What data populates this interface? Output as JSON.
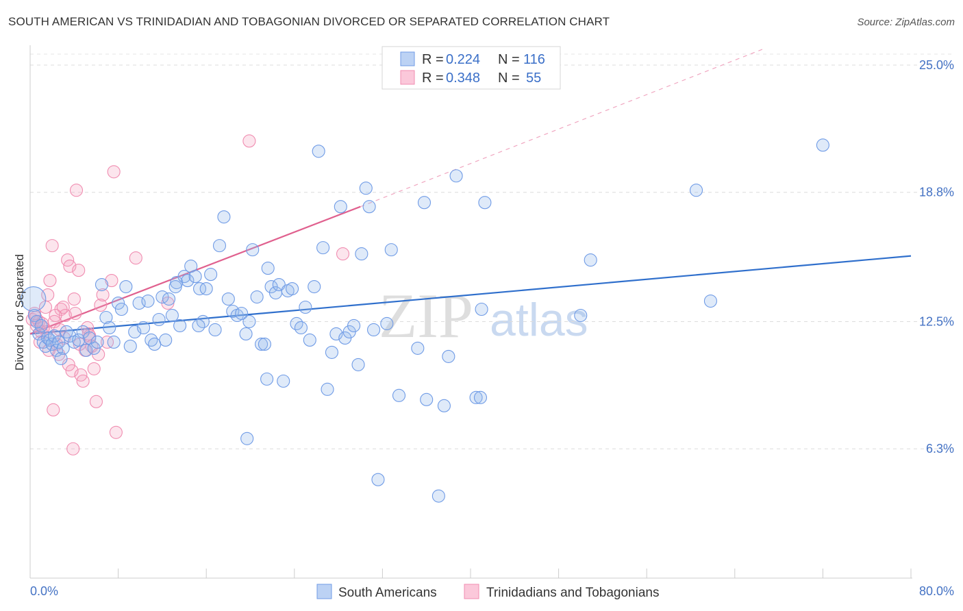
{
  "title": "SOUTH AMERICAN VS TRINIDADIAN AND TOBAGONIAN DIVORCED OR SEPARATED CORRELATION CHART",
  "source": "Source: ZipAtlas.com",
  "watermark": {
    "zip": "ZIP",
    "atlas": "atlas"
  },
  "legend": {
    "r_label": "R =",
    "n_label": "N =",
    "rows": [
      {
        "r": "0.224",
        "n": "116",
        "color": "#6f9be6"
      },
      {
        "r": "0.348",
        "n": "55",
        "color": "#f08cb0"
      }
    ]
  },
  "chart_data": {
    "type": "scatter",
    "title": "SOUTH AMERICAN VS TRINIDADIAN AND TOBAGONIAN DIVORCED OR SEPARATED CORRELATION CHART",
    "xlabel": "",
    "ylabel": "Divorced or Separated",
    "xlim": [
      0,
      80
    ],
    "ylim": [
      0,
      25.8
    ],
    "x_tick_labels": [
      "0.0%",
      "80.0%"
    ],
    "y_ticks": [
      6.3,
      12.5,
      18.8,
      25.0
    ],
    "y_tick_labels": [
      "6.3%",
      "12.5%",
      "18.8%",
      "25.0%"
    ],
    "series": [
      {
        "name": "South Americans",
        "color": "#6f9be6",
        "line_color": "#2f6fcc",
        "trend": {
          "x": [
            0,
            80
          ],
          "y": [
            11.9,
            15.7
          ]
        },
        "points": [
          [
            0.3,
            13.6
          ],
          [
            0.4,
            12.8
          ],
          [
            0.6,
            12.5
          ],
          [
            0.8,
            11.9
          ],
          [
            1.0,
            12.3
          ],
          [
            1.2,
            11.5
          ],
          [
            1.4,
            11.3
          ],
          [
            1.6,
            11.7
          ],
          [
            1.8,
            11.6
          ],
          [
            2.0,
            11.4
          ],
          [
            2.2,
            11.8
          ],
          [
            2.4,
            11.1
          ],
          [
            2.6,
            11.5
          ],
          [
            2.8,
            10.7
          ],
          [
            3.0,
            11.2
          ],
          [
            3.3,
            12.0
          ],
          [
            3.6,
            11.8
          ],
          [
            4.0,
            11.5
          ],
          [
            4.4,
            11.6
          ],
          [
            4.8,
            12.0
          ],
          [
            5.1,
            11.1
          ],
          [
            5.4,
            11.7
          ],
          [
            5.8,
            11.2
          ],
          [
            6.1,
            11.5
          ],
          [
            6.5,
            14.3
          ],
          [
            6.9,
            12.7
          ],
          [
            7.2,
            12.2
          ],
          [
            7.6,
            11.5
          ],
          [
            8.0,
            13.4
          ],
          [
            8.3,
            13.1
          ],
          [
            8.7,
            14.2
          ],
          [
            9.1,
            11.3
          ],
          [
            9.5,
            12.0
          ],
          [
            9.9,
            13.4
          ],
          [
            10.3,
            12.2
          ],
          [
            10.7,
            13.5
          ],
          [
            11.0,
            11.6
          ],
          [
            11.3,
            11.4
          ],
          [
            11.7,
            12.6
          ],
          [
            12.0,
            13.7
          ],
          [
            12.3,
            11.6
          ],
          [
            12.6,
            13.6
          ],
          [
            12.9,
            12.8
          ],
          [
            13.3,
            14.4
          ],
          [
            13.6,
            12.3
          ],
          [
            14.0,
            14.7
          ],
          [
            14.3,
            14.5
          ],
          [
            14.6,
            15.2
          ],
          [
            15.0,
            14.7
          ],
          [
            15.4,
            14.1
          ],
          [
            15.7,
            12.5
          ],
          [
            16.0,
            14.1
          ],
          [
            16.4,
            14.8
          ],
          [
            16.8,
            12.1
          ],
          [
            17.2,
            16.2
          ],
          [
            17.6,
            17.6
          ],
          [
            18.0,
            13.6
          ],
          [
            18.4,
            13.0
          ],
          [
            18.8,
            12.8
          ],
          [
            19.2,
            12.9
          ],
          [
            19.6,
            11.9
          ],
          [
            19.9,
            12.5
          ],
          [
            20.2,
            16.0
          ],
          [
            20.6,
            13.7
          ],
          [
            21.0,
            11.4
          ],
          [
            21.3,
            11.4
          ],
          [
            21.6,
            15.1
          ],
          [
            21.9,
            14.2
          ],
          [
            22.3,
            13.9
          ],
          [
            22.6,
            14.3
          ],
          [
            23.0,
            9.6
          ],
          [
            23.4,
            14.0
          ],
          [
            23.8,
            14.1
          ],
          [
            24.2,
            12.4
          ],
          [
            24.6,
            12.2
          ],
          [
            25.0,
            13.2
          ],
          [
            25.4,
            11.6
          ],
          [
            25.8,
            14.2
          ],
          [
            26.2,
            20.8
          ],
          [
            26.6,
            16.1
          ],
          [
            27.0,
            9.2
          ],
          [
            27.4,
            11.0
          ],
          [
            27.8,
            11.9
          ],
          [
            28.2,
            18.1
          ],
          [
            28.6,
            11.7
          ],
          [
            29.0,
            12.0
          ],
          [
            29.4,
            12.3
          ],
          [
            29.8,
            10.4
          ],
          [
            30.1,
            15.8
          ],
          [
            30.5,
            19.0
          ],
          [
            30.8,
            18.1
          ],
          [
            31.2,
            12.1
          ],
          [
            31.6,
            4.8
          ],
          [
            32.4,
            12.4
          ],
          [
            32.8,
            16.0
          ],
          [
            33.5,
            8.9
          ],
          [
            35.2,
            11.2
          ],
          [
            35.8,
            18.3
          ],
          [
            36.0,
            8.7
          ],
          [
            37.1,
            4.0
          ],
          [
            37.6,
            8.4
          ],
          [
            38.0,
            10.8
          ],
          [
            38.7,
            19.6
          ],
          [
            40.5,
            8.8
          ],
          [
            40.9,
            8.8
          ],
          [
            41.0,
            13.1
          ],
          [
            41.3,
            18.3
          ],
          [
            50.0,
            12.8
          ],
          [
            50.9,
            15.5
          ],
          [
            60.5,
            18.9
          ],
          [
            61.8,
            13.5
          ],
          [
            72.0,
            21.1
          ],
          [
            19.7,
            6.8
          ],
          [
            21.5,
            9.7
          ],
          [
            13.2,
            14.2
          ],
          [
            15.3,
            12.3
          ]
        ]
      },
      {
        "name": "Trinidadians and Tobagonians",
        "color": "#f08cb0",
        "line_color": "#e0608e",
        "trend": {
          "x": [
            0,
            30
          ],
          "y": [
            11.9,
            18.1
          ]
        },
        "trend_ext": {
          "x": [
            30,
            80
          ],
          "y": [
            18.1,
            28.6
          ]
        },
        "points": [
          [
            0.2,
            12.6
          ],
          [
            0.4,
            12.9
          ],
          [
            0.6,
            12.3
          ],
          [
            0.8,
            12.5
          ],
          [
            1.0,
            12.0
          ],
          [
            1.2,
            12.2
          ],
          [
            1.4,
            13.2
          ],
          [
            1.6,
            13.8
          ],
          [
            1.8,
            14.5
          ],
          [
            2.0,
            16.2
          ],
          [
            2.2,
            12.5
          ],
          [
            2.4,
            11.4
          ],
          [
            2.6,
            10.9
          ],
          [
            2.8,
            13.1
          ],
          [
            3.0,
            13.2
          ],
          [
            3.2,
            12.8
          ],
          [
            3.4,
            15.5
          ],
          [
            3.6,
            15.2
          ],
          [
            3.8,
            10.1
          ],
          [
            4.0,
            13.6
          ],
          [
            4.2,
            18.9
          ],
          [
            4.4,
            15.0
          ],
          [
            4.6,
            9.9
          ],
          [
            4.8,
            9.6
          ],
          [
            5.0,
            11.1
          ],
          [
            5.2,
            12.2
          ],
          [
            5.4,
            11.8
          ],
          [
            5.6,
            11.3
          ],
          [
            5.8,
            10.2
          ],
          [
            6.0,
            8.6
          ],
          [
            6.2,
            10.9
          ],
          [
            6.4,
            13.3
          ],
          [
            6.6,
            13.8
          ],
          [
            7.0,
            11.5
          ],
          [
            7.4,
            14.5
          ],
          [
            7.6,
            19.8
          ],
          [
            7.8,
            7.1
          ],
          [
            9.6,
            15.6
          ],
          [
            12.5,
            13.4
          ],
          [
            19.9,
            21.3
          ],
          [
            28.4,
            15.8
          ],
          [
            3.1,
            11.7
          ],
          [
            2.3,
            12.8
          ],
          [
            1.1,
            12.4
          ],
          [
            0.9,
            11.5
          ],
          [
            2.7,
            12.1
          ],
          [
            4.1,
            12.9
          ],
          [
            5.3,
            11.9
          ],
          [
            3.5,
            10.4
          ],
          [
            1.5,
            12.0
          ],
          [
            0.5,
            12.7
          ],
          [
            2.1,
            8.2
          ],
          [
            3.9,
            6.3
          ],
          [
            1.7,
            11.1
          ],
          [
            4.5,
            11.4
          ]
        ]
      }
    ]
  }
}
